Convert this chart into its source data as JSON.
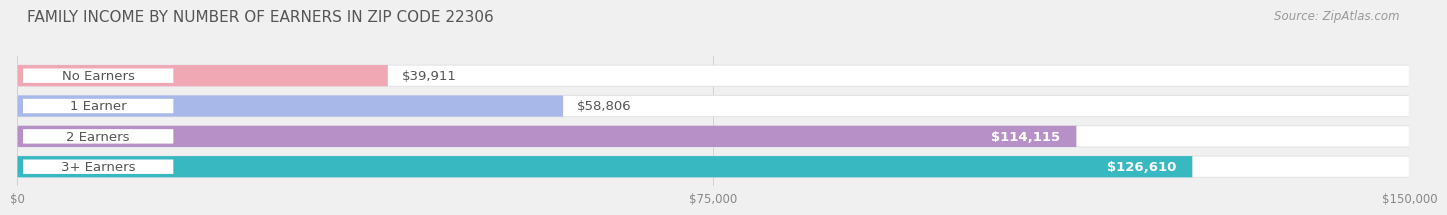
{
  "title": "FAMILY INCOME BY NUMBER OF EARNERS IN ZIP CODE 22306",
  "source": "Source: ZipAtlas.com",
  "categories": [
    "No Earners",
    "1 Earner",
    "2 Earners",
    "3+ Earners"
  ],
  "values": [
    39911,
    58806,
    114115,
    126610
  ],
  "bar_colors": [
    "#f0a8b4",
    "#a8b8e8",
    "#b890c8",
    "#38b8c0"
  ],
  "value_labels": [
    "$39,911",
    "$58,806",
    "$114,115",
    "$126,610"
  ],
  "value_label_colors": [
    "#888888",
    "#888888",
    "#ffffff",
    "#ffffff"
  ],
  "xmax": 150000,
  "xtick_labels": [
    "$0",
    "$75,000",
    "$150,000"
  ],
  "bg_color": "#f0f0f0",
  "bar_bg_color": "#e4e4e8",
  "title_fontsize": 11,
  "source_fontsize": 8.5,
  "label_fontsize": 9.5,
  "value_fontsize": 9.5
}
